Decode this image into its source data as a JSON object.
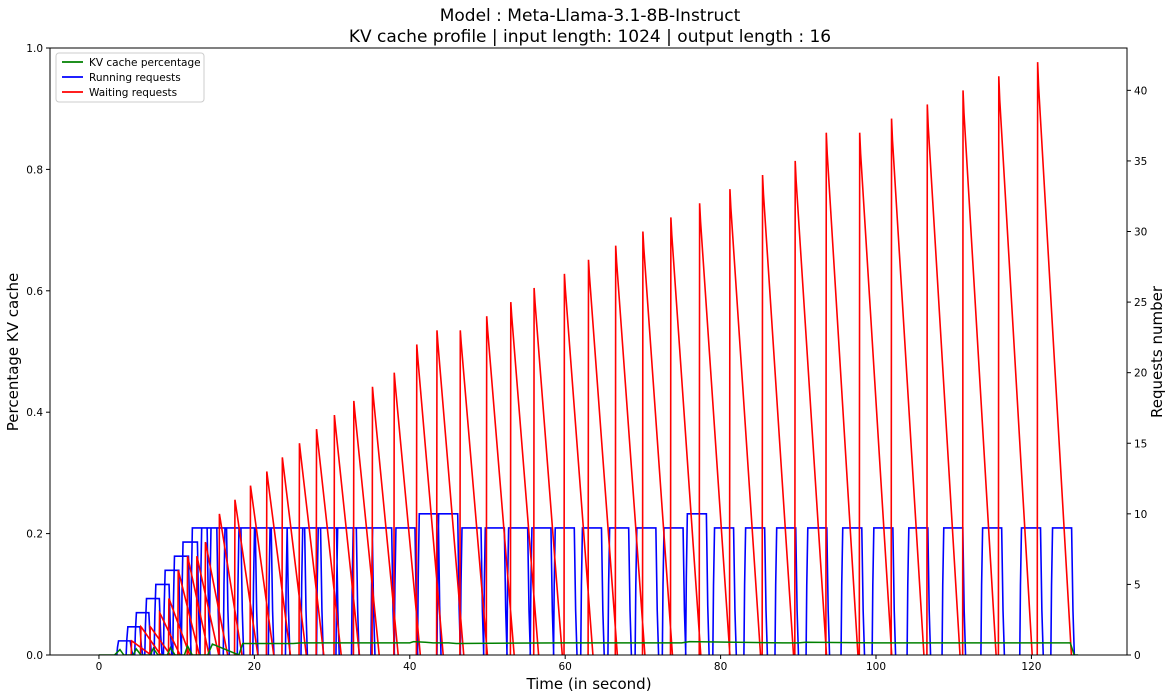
{
  "chart_data": {
    "type": "line",
    "title": "Model : Meta-Llama-3.1-8B-Instruct",
    "subtitle": "KV cache profile | input length: 1024 | output length : 16",
    "xlabel": "Time (in second)",
    "ylabel_left": "Percentage KV cache",
    "ylabel_right": "Requests number",
    "xlim": [
      -6.3,
      132.3
    ],
    "ylim_left": [
      0,
      1.0
    ],
    "ylim_right": [
      0,
      43
    ],
    "x_ticks": [
      0,
      20,
      40,
      60,
      80,
      100,
      120
    ],
    "x_tick_labels": [
      "0",
      "20",
      "40",
      "60",
      "80",
      "100",
      "120"
    ],
    "y_left_ticks": [
      0.0,
      0.2,
      0.4,
      0.6,
      0.8,
      1.0
    ],
    "y_left_tick_labels": [
      "0.0",
      "0.2",
      "0.4",
      "0.6",
      "0.8",
      "1.0"
    ],
    "y_right_ticks": [
      0,
      5,
      10,
      15,
      20,
      25,
      30,
      35,
      40
    ],
    "y_right_tick_labels": [
      "0",
      "5",
      "10",
      "15",
      "20",
      "25",
      "30",
      "35",
      "40"
    ],
    "grid": false,
    "legend_position": "top-left",
    "legend": [
      {
        "label": "KV cache percentage",
        "color": "#008000"
      },
      {
        "label": "Running requests",
        "color": "#0000ff"
      },
      {
        "label": "Waiting requests",
        "color": "#ff0000"
      }
    ],
    "series": [
      {
        "name": "KV cache percentage",
        "axis": "left",
        "color": "#008000",
        "style": "line",
        "x": [
          0,
          2.0,
          2.7,
          3.2,
          4.4,
          4.8,
          5.4,
          6.6,
          7.0,
          7.6,
          8.8,
          9.2,
          9.8,
          11.0,
          11.4,
          12.0,
          14.0,
          14.6,
          18.0,
          18.5,
          21.0,
          25.0,
          26.0,
          40.0,
          40.5,
          42.0,
          43.0,
          45.0,
          46.0,
          60.0,
          75.0,
          76.0,
          88.0,
          90.0,
          91.0,
          100.0,
          102.0,
          103.0,
          118.0,
          120.0,
          121.0,
          125.0,
          125.5,
          126.0
        ],
        "y": [
          0,
          0,
          0.009,
          0.0,
          0.0,
          0.01,
          0.0,
          0.0,
          0.011,
          0.0,
          0.0,
          0.012,
          0.0,
          0.0,
          0.015,
          0.0,
          0.0,
          0.018,
          0.0,
          0.019,
          0.019,
          0.019,
          0.02,
          0.02,
          0.022,
          0.021,
          0.02,
          0.02,
          0.019,
          0.02,
          0.02,
          0.022,
          0.02,
          0.02,
          0.021,
          0.02,
          0.02,
          0.02,
          0.02,
          0.02,
          0.02,
          0.02,
          0.0,
          0.0
        ]
      },
      {
        "name": "Running requests",
        "axis": "right",
        "color": "#0000ff",
        "style": "blocks",
        "x": [
          0,
          2.3,
          3.5,
          4.6,
          5.9,
          7.1,
          8.3,
          9.5,
          10.6,
          11.8,
          13.0,
          14.2,
          16.0,
          17.8,
          19.8,
          21.8,
          24.0,
          26.0,
          28.0,
          30.5,
          32.5,
          35.0,
          38.0,
          41.0,
          43.5,
          46.5,
          49.5,
          52.5,
          55.5,
          58.5,
          62.0,
          65.5,
          69.0,
          72.5,
          75.5,
          79.0,
          83.0,
          87.0,
          91.0,
          95.5,
          99.5,
          104.0,
          108.5,
          113.5,
          118.5,
          122.5
        ],
        "y": [
          0,
          1,
          2,
          3,
          4,
          5,
          6,
          7,
          8,
          9,
          9,
          9,
          9,
          9,
          9,
          9,
          9,
          9,
          9,
          9,
          9,
          9,
          9,
          10,
          10,
          9,
          9,
          9,
          9,
          9,
          9,
          9,
          9,
          9,
          10,
          9,
          9,
          9,
          9,
          9,
          9,
          9,
          9,
          9,
          9,
          9
        ]
      },
      {
        "name": "Waiting requests",
        "axis": "right",
        "color": "#ff0000",
        "style": "sawtooth",
        "x": [
          4.2,
          5.4,
          6.6,
          7.8,
          9.0,
          10.2,
          11.4,
          12.6,
          13.7,
          15.5,
          17.5,
          19.5,
          21.6,
          23.6,
          25.8,
          28.0,
          30.3,
          32.8,
          35.2,
          38.0,
          40.9,
          43.5,
          46.5,
          49.9,
          53.0,
          56.0,
          59.9,
          63.0,
          66.5,
          70.0,
          73.6,
          77.3,
          81.2,
          85.4,
          89.6,
          93.6,
          97.9,
          102.0,
          106.6,
          111.2,
          115.8,
          120.8
        ],
        "y": [
          1,
          2,
          2,
          3,
          4,
          6,
          7,
          7,
          8,
          10,
          11,
          12,
          13,
          14,
          15,
          16,
          17,
          18,
          19,
          20,
          22,
          23,
          23,
          24,
          25,
          26,
          27,
          28,
          29,
          30,
          31,
          32,
          33,
          34,
          35,
          37,
          37,
          38,
          39,
          40,
          41,
          42
        ]
      }
    ]
  }
}
